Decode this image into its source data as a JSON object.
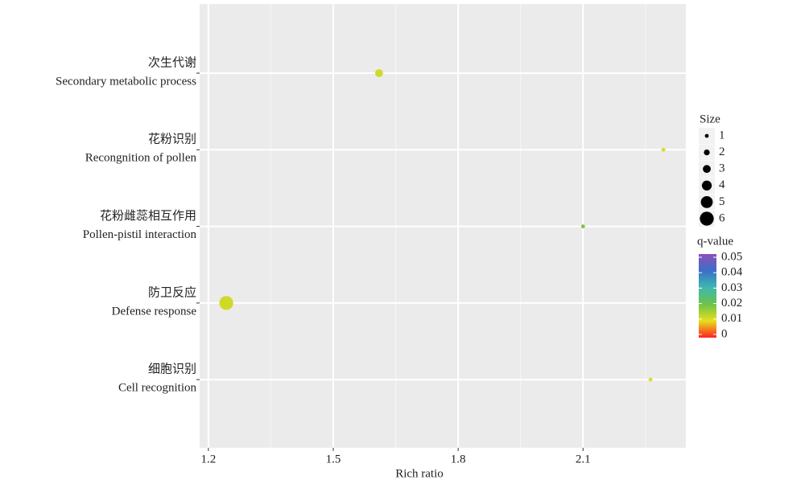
{
  "chart_data": {
    "type": "scatter",
    "x_label": "Rich ratio",
    "categories": [
      [
        "次生代谢",
        "Secondary metabolic process"
      ],
      [
        "花粉识别",
        "Recongnition of pollen"
      ],
      [
        "花粉雌蕊相互作用",
        "Pollen-pistil interaction"
      ],
      [
        "防卫反应",
        "Defense response"
      ],
      [
        "细胞识别",
        "Cell recognition"
      ]
    ],
    "x": [
      1.61,
      2.293,
      2.1,
      1.243,
      2.262
    ],
    "sizes": [
      3,
      1,
      1,
      6,
      1
    ],
    "qvalues": [
      0.012,
      0.011,
      0.019,
      0.012,
      0.011
    ],
    "xlim": [
      1.179,
      2.347
    ],
    "xticks": [
      {
        "value": 1.2,
        "label": "1.2"
      },
      1.5,
      1.8,
      2.1
    ],
    "grid": true,
    "size_title": "Size",
    "size_ticks": [
      1,
      2,
      3,
      4,
      5,
      6
    ],
    "color_title": "q-value",
    "color_lim": [
      0,
      0.05
    ],
    "color_ticks": [
      {
        "value": 0.05,
        "label": "0.05"
      },
      0.04,
      0.03,
      0.02,
      0.01,
      0
    ],
    "color_stops": [
      "#ff2020",
      "#e6e01e",
      "#6cc24a",
      "#3db8b0",
      "#3c6fc8",
      "#8e4fb8"
    ],
    "legend": "right"
  }
}
